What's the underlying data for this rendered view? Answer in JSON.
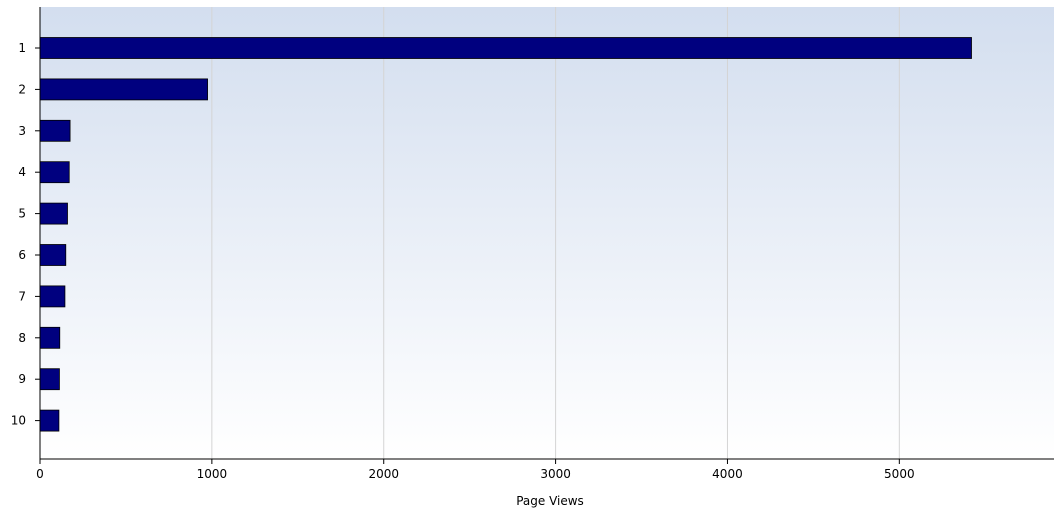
{
  "chart_data": {
    "type": "bar",
    "orientation": "horizontal",
    "categories": [
      "1",
      "2",
      "3",
      "4",
      "5",
      "6",
      "7",
      "8",
      "9",
      "10"
    ],
    "values": [
      5420,
      975,
      175,
      170,
      160,
      150,
      145,
      115,
      113,
      110
    ],
    "xlabel": "Page Views",
    "ylabel": "",
    "xlim": [
      0,
      5900
    ],
    "xticks": [
      0,
      1000,
      2000,
      3000,
      4000,
      5000
    ],
    "grid": "vertical",
    "bar_color": "#00007f",
    "background_gradient": [
      "#d3deef",
      "#ffffff"
    ]
  }
}
